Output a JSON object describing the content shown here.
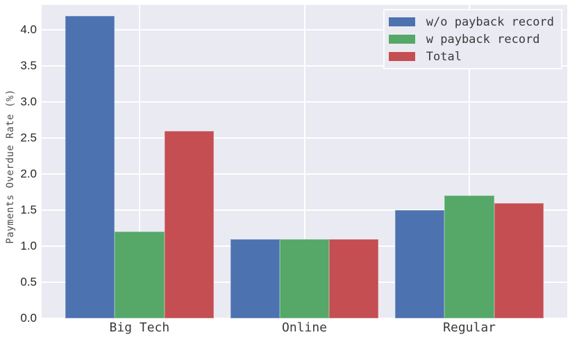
{
  "chart_data": {
    "type": "bar",
    "title": "",
    "categories": [
      "Big Tech",
      "Online",
      "Regular"
    ],
    "series": [
      {
        "name": "w/o payback record",
        "color": "#4C72B0",
        "values": [
          4.2,
          1.1,
          1.5
        ]
      },
      {
        "name": "w payback record",
        "color": "#55A868",
        "values": [
          1.2,
          1.1,
          1.7
        ]
      },
      {
        "name": "Total",
        "color": "#C44E52",
        "values": [
          2.6,
          1.1,
          1.6
        ]
      }
    ],
    "xlabel": "",
    "ylabel": "Payments Overdue Rate (%)",
    "ylim": [
      0,
      4.35
    ],
    "yticks": [
      "0.0",
      "0.5",
      "1.0",
      "1.5",
      "2.0",
      "2.5",
      "3.0",
      "3.5",
      "4.0"
    ],
    "grid": true,
    "grid_style": "horizontal lines at every 0.5, vertical line at each category center",
    "legend_position": "upper right",
    "bar_group_width": 0.9
  },
  "colors": {
    "plot_background": "#EAEAF2",
    "gridline": "#FFFFFF",
    "tick_text": "#262626",
    "label_text": "#3A3A3A"
  }
}
